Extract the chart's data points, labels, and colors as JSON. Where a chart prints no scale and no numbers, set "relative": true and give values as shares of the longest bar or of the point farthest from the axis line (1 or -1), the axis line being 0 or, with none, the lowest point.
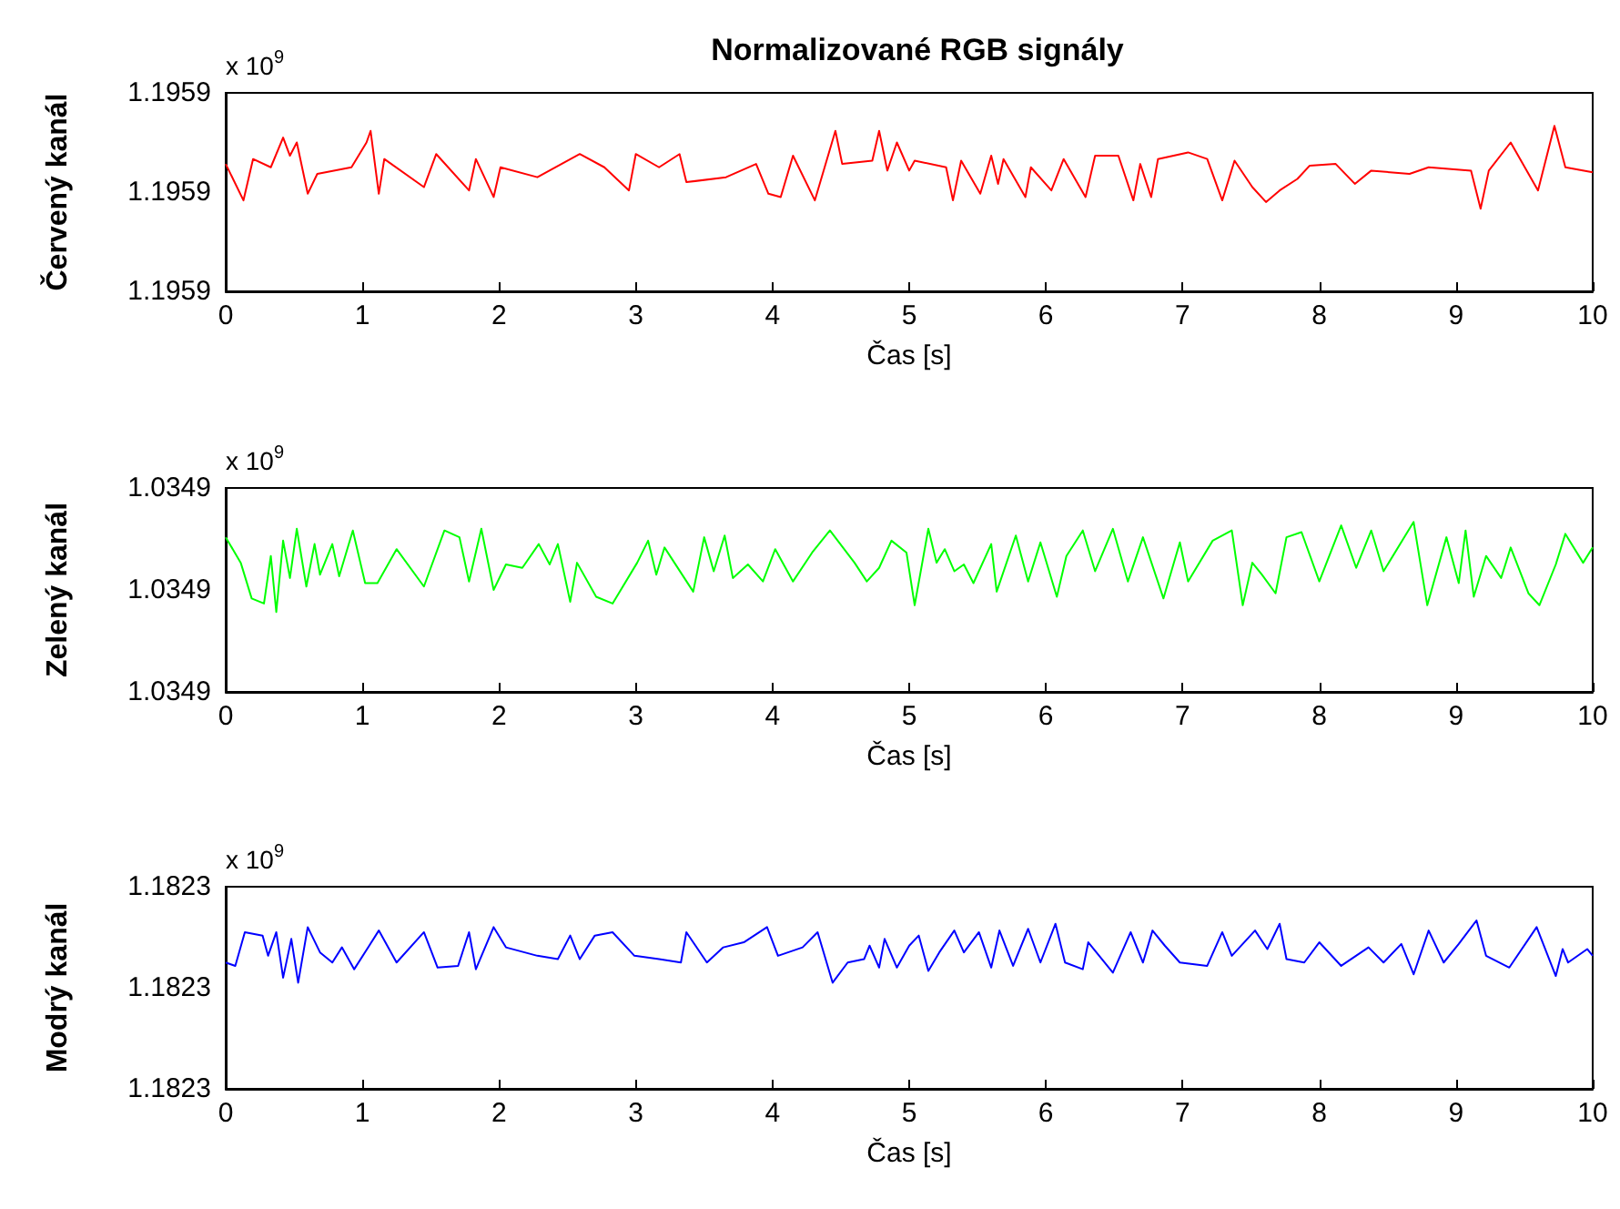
{
  "chart_data": [
    {
      "type": "line",
      "title": "Normalizované RGB signály",
      "xlabel": "Čas [s]",
      "ylabel": "Červený kanál",
      "annotations": [
        "x 10$^{9}$",
        "1.1959",
        "1.1959",
        "1.1959"
      ],
      "relative": true,
      "xlim": [
        0,
        10
      ],
      "xticks": [
        0,
        1,
        2,
        3,
        4,
        5,
        6,
        7,
        8,
        9,
        10
      ],
      "series": [
        {
          "color": "#ff0000",
          "x": [
            0,
            0.13,
            0.2,
            0.33,
            0.42,
            0.47,
            0.52,
            0.6,
            0.67,
            0.92,
            1.03,
            1.06,
            1.12,
            1.16,
            1.45,
            1.54,
            1.78,
            1.83,
            1.96,
            2.01,
            2.28,
            2.59,
            2.77,
            2.95,
            3.0,
            3.17,
            3.32,
            3.37,
            3.66,
            3.88,
            3.97,
            4.06,
            4.15,
            4.31,
            4.46,
            4.51,
            4.73,
            4.78,
            4.84,
            4.91,
            5.0,
            5.04,
            5.27,
            5.32,
            5.38,
            5.52,
            5.6,
            5.65,
            5.69,
            5.85,
            5.89,
            6.04,
            6.13,
            6.29,
            6.36,
            6.53,
            6.64,
            6.69,
            6.77,
            6.82,
            7.04,
            7.18,
            7.29,
            7.38,
            7.51,
            7.61,
            7.71,
            7.84,
            7.93,
            8.12,
            8.26,
            8.38,
            8.66,
            8.8,
            9.11,
            9.18,
            9.24,
            9.4,
            9.6,
            9.72,
            9.8,
            10.0
          ],
          "values": [
            0.77,
            0.55,
            0.8,
            0.75,
            0.93,
            0.82,
            0.9,
            0.59,
            0.71,
            0.75,
            0.9,
            0.97,
            0.59,
            0.8,
            0.63,
            0.83,
            0.61,
            0.8,
            0.57,
            0.75,
            0.69,
            0.83,
            0.75,
            0.61,
            0.83,
            0.75,
            0.83,
            0.66,
            0.69,
            0.77,
            0.59,
            0.57,
            0.82,
            0.55,
            0.97,
            0.77,
            0.79,
            0.97,
            0.73,
            0.9,
            0.73,
            0.79,
            0.75,
            0.55,
            0.79,
            0.59,
            0.82,
            0.65,
            0.8,
            0.57,
            0.75,
            0.61,
            0.8,
            0.57,
            0.82,
            0.82,
            0.55,
            0.77,
            0.57,
            0.8,
            0.84,
            0.8,
            0.55,
            0.79,
            0.63,
            0.54,
            0.61,
            0.68,
            0.76,
            0.77,
            0.65,
            0.73,
            0.71,
            0.75,
            0.73,
            0.5,
            0.73,
            0.9,
            0.61,
            1,
            0.75,
            0.72
          ]
        }
      ]
    },
    {
      "type": "line",
      "xlabel": "Čas [s]",
      "ylabel": "Zelený kanál",
      "annotations": [
        "x 10$^{9}$",
        "1.0349",
        "1.0349",
        "1.0349"
      ],
      "relative": true,
      "xlim": [
        0,
        10
      ],
      "xticks": [
        0,
        1,
        2,
        3,
        4,
        5,
        6,
        7,
        8,
        9,
        10
      ],
      "series": [
        {
          "color": "#00ff00",
          "x": [
            0,
            0.11,
            0.19,
            0.28,
            0.33,
            0.37,
            0.42,
            0.47,
            0.52,
            0.59,
            0.65,
            0.69,
            0.78,
            0.83,
            0.93,
            1.02,
            1.11,
            1.25,
            1.45,
            1.6,
            1.71,
            1.78,
            1.87,
            1.96,
            2.05,
            2.17,
            2.29,
            2.37,
            2.43,
            2.52,
            2.57,
            2.71,
            2.83,
            3.01,
            3.09,
            3.15,
            3.21,
            3.42,
            3.5,
            3.57,
            3.65,
            3.71,
            3.82,
            3.93,
            4.02,
            4.15,
            4.29,
            4.42,
            4.6,
            4.69,
            4.78,
            4.87,
            4.98,
            5.04,
            5.14,
            5.2,
            5.26,
            5.33,
            5.4,
            5.47,
            5.6,
            5.64,
            5.78,
            5.87,
            5.96,
            6.08,
            6.15,
            6.27,
            6.36,
            6.49,
            6.6,
            6.71,
            6.86,
            6.98,
            7.04,
            7.22,
            7.36,
            7.44,
            7.51,
            7.58,
            7.68,
            7.76,
            7.87,
            8.0,
            8.16,
            8.27,
            8.38,
            8.47,
            8.69,
            8.79,
            8.93,
            9.02,
            9.07,
            9.13,
            9.22,
            9.33,
            9.4,
            9.53,
            9.61,
            9.73,
            9.8,
            9.93,
            10.0
          ],
          "values": [
            0.91,
            0.76,
            0.55,
            0.52,
            0.8,
            0.47,
            0.89,
            0.67,
            0.96,
            0.62,
            0.87,
            0.69,
            0.87,
            0.68,
            0.95,
            0.64,
            0.64,
            0.84,
            0.62,
            0.95,
            0.91,
            0.65,
            0.96,
            0.6,
            0.75,
            0.73,
            0.87,
            0.75,
            0.87,
            0.53,
            0.76,
            0.56,
            0.52,
            0.76,
            0.89,
            0.69,
            0.85,
            0.59,
            0.91,
            0.71,
            0.92,
            0.67,
            0.75,
            0.65,
            0.84,
            0.65,
            0.82,
            0.95,
            0.76,
            0.65,
            0.73,
            0.89,
            0.82,
            0.51,
            0.96,
            0.76,
            0.84,
            0.71,
            0.75,
            0.64,
            0.87,
            0.59,
            0.92,
            0.65,
            0.88,
            0.56,
            0.8,
            0.95,
            0.71,
            0.96,
            0.65,
            0.91,
            0.55,
            0.88,
            0.65,
            0.89,
            0.95,
            0.51,
            0.76,
            0.69,
            0.58,
            0.91,
            0.94,
            0.65,
            0.98,
            0.73,
            0.95,
            0.71,
            1,
            0.51,
            0.91,
            0.64,
            0.95,
            0.56,
            0.8,
            0.67,
            0.85,
            0.58,
            0.51,
            0.75,
            0.93,
            0.76,
            0.85
          ]
        }
      ]
    },
    {
      "type": "line",
      "xlabel": "Čas [s]",
      "ylabel": "Modrý kanál",
      "annotations": [
        "x 10$^{9}$",
        "1.1823",
        "1.1823",
        "1.1823"
      ],
      "relative": true,
      "xlim": [
        0,
        10
      ],
      "xticks": [
        0,
        1,
        2,
        3,
        4,
        5,
        6,
        7,
        8,
        9,
        10
      ],
      "series": [
        {
          "color": "#0000ff",
          "x": [
            0,
            0.07,
            0.14,
            0.27,
            0.31,
            0.37,
            0.42,
            0.48,
            0.53,
            0.6,
            0.69,
            0.78,
            0.85,
            0.94,
            1.05,
            1.12,
            1.25,
            1.45,
            1.55,
            1.7,
            1.78,
            1.83,
            1.96,
            2.05,
            2.28,
            2.43,
            2.52,
            2.59,
            2.7,
            2.83,
            2.99,
            3.17,
            3.33,
            3.37,
            3.52,
            3.64,
            3.79,
            3.96,
            4.04,
            4.22,
            4.33,
            4.44,
            4.55,
            4.67,
            4.71,
            4.78,
            4.82,
            4.91,
            5.0,
            5.07,
            5.14,
            5.22,
            5.33,
            5.4,
            5.51,
            5.6,
            5.66,
            5.76,
            5.87,
            5.96,
            6.07,
            6.14,
            6.27,
            6.31,
            6.49,
            6.62,
            6.71,
            6.78,
            6.87,
            6.98,
            7.18,
            7.29,
            7.36,
            7.53,
            7.62,
            7.71,
            7.76,
            7.89,
            8.0,
            8.16,
            8.36,
            8.47,
            8.6,
            8.69,
            8.8,
            8.91,
            9.02,
            9.15,
            9.22,
            9.39,
            9.59,
            9.73,
            9.78,
            9.82,
            9.96,
            10.0
          ],
          "values": [
            0.75,
            0.73,
            0.93,
            0.91,
            0.79,
            0.93,
            0.66,
            0.89,
            0.63,
            0.96,
            0.81,
            0.75,
            0.84,
            0.71,
            0.85,
            0.94,
            0.75,
            0.93,
            0.72,
            0.73,
            0.93,
            0.71,
            0.96,
            0.84,
            0.79,
            0.77,
            0.91,
            0.77,
            0.91,
            0.93,
            0.79,
            0.77,
            0.75,
            0.93,
            0.75,
            0.84,
            0.87,
            0.96,
            0.79,
            0.84,
            0.93,
            0.63,
            0.75,
            0.77,
            0.85,
            0.72,
            0.89,
            0.72,
            0.85,
            0.91,
            0.7,
            0.81,
            0.94,
            0.81,
            0.93,
            0.72,
            0.94,
            0.73,
            0.95,
            0.75,
            0.98,
            0.75,
            0.71,
            0.87,
            0.69,
            0.93,
            0.75,
            0.94,
            0.85,
            0.75,
            0.73,
            0.93,
            0.79,
            0.94,
            0.83,
            0.98,
            0.77,
            0.75,
            0.87,
            0.73,
            0.84,
            0.75,
            0.86,
            0.68,
            0.94,
            0.75,
            0.86,
            1,
            0.79,
            0.72,
            0.96,
            0.67,
            0.83,
            0.75,
            0.83,
            0.79
          ]
        }
      ]
    }
  ]
}
